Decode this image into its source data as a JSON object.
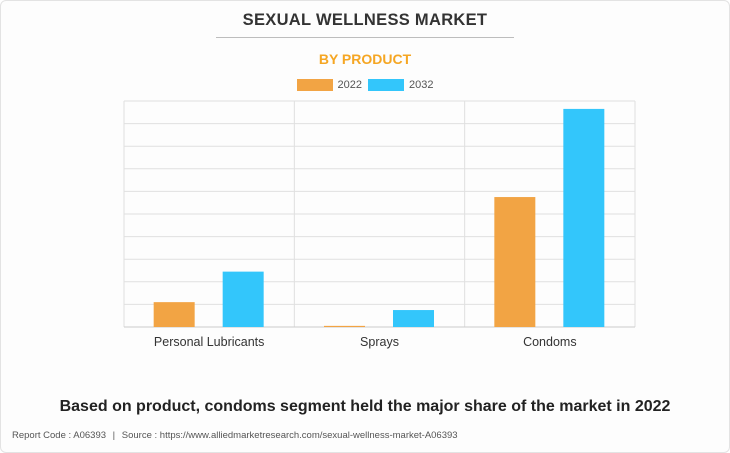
{
  "title": "SEXUAL WELLNESS MARKET",
  "subtitle": "BY PRODUCT",
  "headline": "Based on product, condoms segment held the major share of the market in 2022",
  "footer": {
    "report_code": "Report Code : A06393",
    "separator": "|",
    "source": "Source : https://www.alliedmarketresearch.com/sexual-wellness-market-A06393"
  },
  "colors": {
    "2022": "#f2a444",
    "2032": "#33c6fb",
    "grid": "#e0e0e0",
    "axis": "#cccccc"
  },
  "chart_data": {
    "type": "bar",
    "categories": [
      "Personal Lubricants",
      "Sprays",
      "Condoms"
    ],
    "series": [
      {
        "name": "2022",
        "values": [
          2.2,
          0.1,
          11.5
        ]
      },
      {
        "name": "2032",
        "values": [
          4.9,
          1.5,
          19.3
        ]
      }
    ],
    "ylim": [
      0,
      20
    ],
    "grid": true,
    "legend": "top-center",
    "xlabel": "",
    "ylabel": ""
  }
}
